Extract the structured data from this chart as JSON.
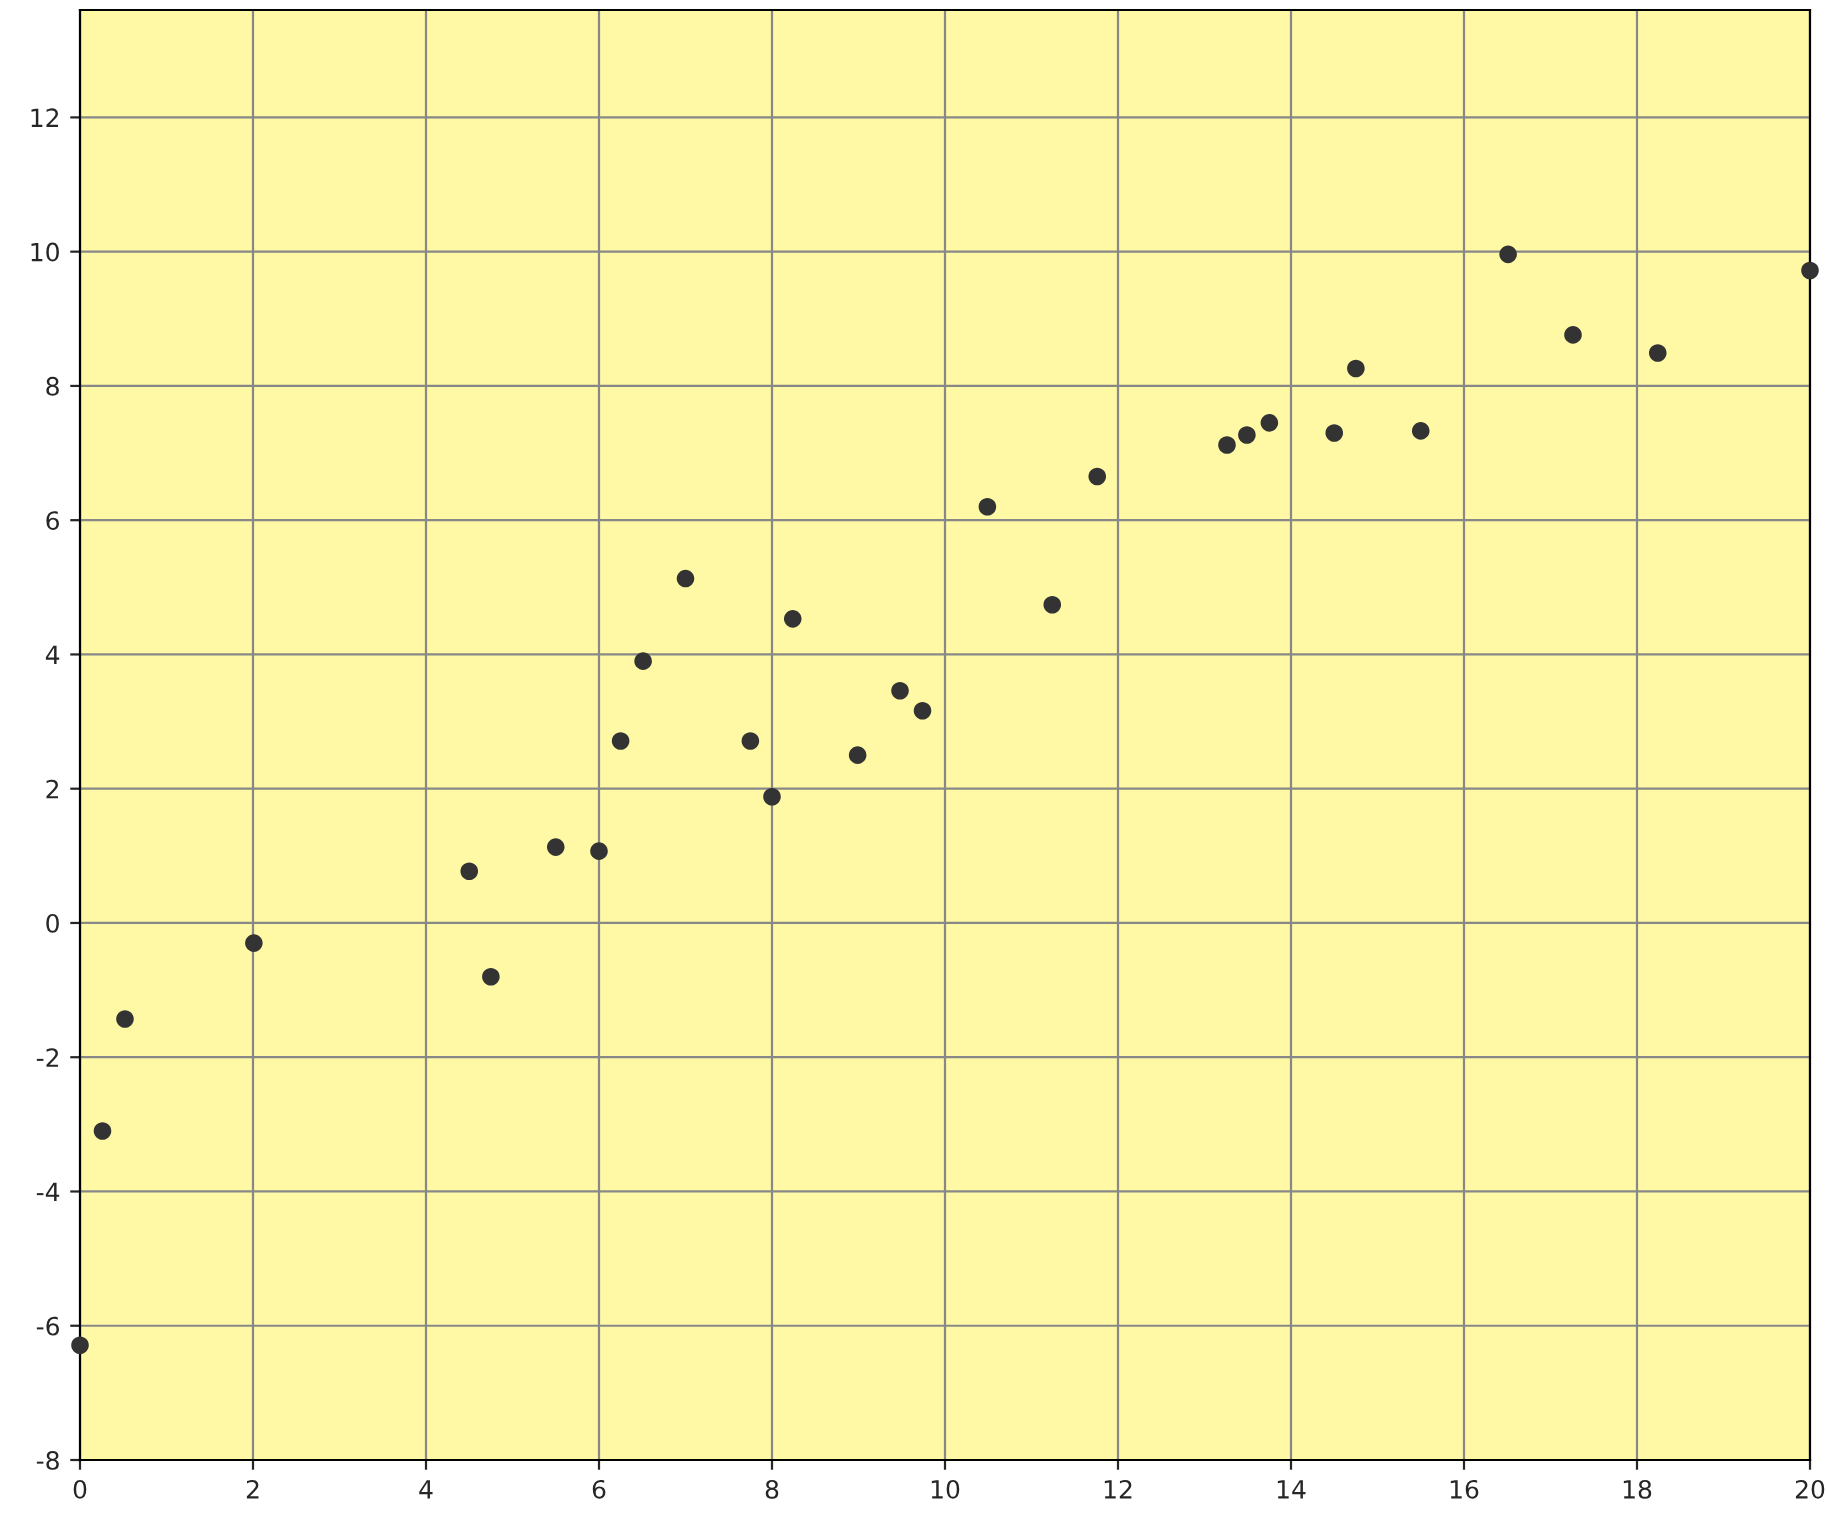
{
  "chart_data": {
    "type": "scatter",
    "x": [
      0,
      0.26,
      0.52,
      2.01,
      4.5,
      4.75,
      5.5,
      6.0,
      6.25,
      6.51,
      7.0,
      7.75,
      8.0,
      8.24,
      8.99,
      9.48,
      9.74,
      10.49,
      11.24,
      11.76,
      13.26,
      13.49,
      13.75,
      14.5,
      14.75,
      15.5,
      16.51,
      17.26,
      18.24,
      20
    ],
    "series": [
      {
        "color": "#333333",
        "values": [
          -6.29,
          -3.1,
          -1.43,
          -0.3,
          0.77,
          -0.8,
          1.13,
          1.07,
          2.71,
          3.9,
          5.13,
          2.71,
          1.88,
          4.53,
          2.5,
          3.46,
          3.16,
          6.2,
          4.74,
          6.65,
          7.12,
          7.27,
          7.45,
          7.3,
          8.26,
          7.33,
          9.96,
          8.76,
          8.49,
          9.72
        ]
      }
    ],
    "xlim": [
      0,
      20
    ],
    "xticks": [
      0,
      2,
      4,
      6,
      8,
      10,
      12,
      14,
      16,
      18,
      20
    ],
    "ylim": [
      -8,
      13.6
    ],
    "yticks": [
      -8,
      -6,
      -4,
      -2,
      0,
      2,
      4,
      6,
      8,
      10,
      12
    ],
    "grid": true,
    "marker": "circle"
  }
}
